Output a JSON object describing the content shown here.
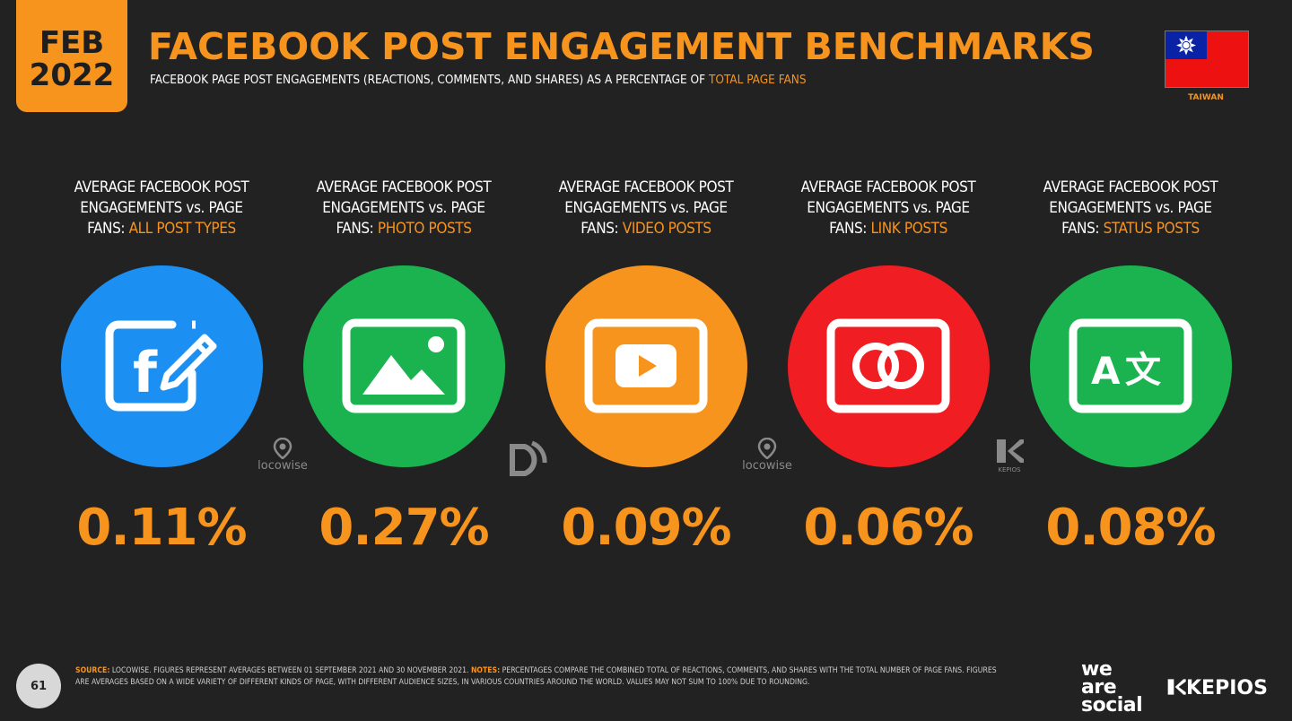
{
  "header": {
    "month": "FEB",
    "year": "2022",
    "title": "FACEBOOK POST ENGAGEMENT BENCHMARKS",
    "subtitle_main": "FACEBOOK PAGE POST ENGAGEMENTS (REACTIONS, COMMENTS, AND SHARES) AS A PERCENTAGE OF ",
    "subtitle_highlight": "TOTAL PAGE FANS",
    "country": "TAIWAN"
  },
  "colors": {
    "accent": "#f7941d",
    "background": "#222222"
  },
  "metrics": [
    {
      "line1": "AVERAGE FACEBOOK POST",
      "line2": "ENGAGEMENTS vs. PAGE",
      "prefix": "FANS: ",
      "highlight": "ALL POST TYPES",
      "value": "0.11%",
      "icon": "facebook-edit-icon",
      "color": "#1b8ff2"
    },
    {
      "line1": "AVERAGE FACEBOOK POST",
      "line2": "ENGAGEMENTS vs. PAGE",
      "prefix": "FANS: ",
      "highlight": "PHOTO POSTS",
      "value": "0.27%",
      "icon": "photo-icon",
      "color": "#1bb34f"
    },
    {
      "line1": "AVERAGE FACEBOOK POST",
      "line2": "ENGAGEMENTS vs. PAGE",
      "prefix": "FANS: ",
      "highlight": "VIDEO POSTS",
      "value": "0.09%",
      "icon": "video-play-icon",
      "color": "#f7941d"
    },
    {
      "line1": "AVERAGE FACEBOOK POST",
      "line2": "ENGAGEMENTS vs. PAGE",
      "prefix": "FANS: ",
      "highlight": "LINK POSTS",
      "value": "0.06%",
      "icon": "link-icon",
      "color": "#f01e23"
    },
    {
      "line1": "AVERAGE FACEBOOK POST",
      "line2": "ENGAGEMENTS vs. PAGE",
      "prefix": "FANS: ",
      "highlight": "STATUS POSTS",
      "value": "0.08%",
      "icon": "translate-icon",
      "color": "#1bb34f"
    }
  ],
  "source_logos": {
    "locowise": "locowise",
    "kepios_small": "KEPIOS"
  },
  "footer": {
    "page_number": "61",
    "source_label": "SOURCE:",
    "source_text": " LOCOWISE. FIGURES REPRESENT AVERAGES BETWEEN 01 SEPTEMBER 2021 AND 30 NOVEMBER 2021. ",
    "notes_label": "NOTES:",
    "notes_text": " PERCENTAGES COMPARE THE COMBINED TOTAL OF REACTIONS, COMMENTS, AND SHARES WITH THE TOTAL NUMBER OF PAGE FANS. FIGURES ARE AVERAGES BASED ON A WIDE VARIETY OF DIFFERENT KINDS OF PAGE, WITH DIFFERENT AUDIENCE SIZES, IN VARIOUS COUNTRIES AROUND THE WORLD. VALUES MAY NOT SUM TO 100% DUE TO ROUNDING.",
    "brand_we": "we",
    "brand_are": "are",
    "brand_social": "social",
    "brand_kepios": "KEPIOS"
  }
}
